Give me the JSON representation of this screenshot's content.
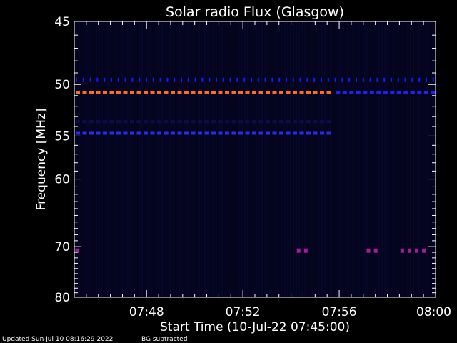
{
  "chart_data": {
    "type": "heatmap",
    "title": "Solar radio Flux (Glasgow)",
    "xlabel": "Start Time (10-Jul-22 07:45:00)",
    "ylabel": "Frequency [MHz]",
    "x_range": [
      "07:45:00",
      "08:00:00"
    ],
    "x_ticks": [
      "07:48",
      "07:52",
      "07:56",
      "08:00"
    ],
    "x_tick_minutes": [
      3,
      7,
      11,
      15
    ],
    "y_range": [
      45,
      80
    ],
    "y_ticks": [
      45,
      50,
      55,
      60,
      70,
      80
    ],
    "y_scale": "reciprocal",
    "background_color": "#04041c",
    "features": [
      {
        "kind": "interference_band",
        "freq_mhz": 49.6,
        "start_min": 0,
        "end_min": 15,
        "color": "#1a1aff",
        "style": "ticks"
      },
      {
        "kind": "interference_band",
        "freq_mhz": 50.7,
        "start_min": 0,
        "end_min": 10.8,
        "color": "#ff6a28",
        "style": "dashes"
      },
      {
        "kind": "interference_band",
        "freq_mhz": 50.7,
        "start_min": 10.8,
        "end_min": 15,
        "color": "#2222ee",
        "style": "dashes"
      },
      {
        "kind": "interference_band",
        "freq_mhz": 53.5,
        "start_min": 0,
        "end_min": 10.8,
        "color": "#0c0c55",
        "style": "dashes"
      },
      {
        "kind": "interference_band",
        "freq_mhz": 54.7,
        "start_min": 0,
        "end_min": 10.8,
        "color": "#2a2aee",
        "style": "dashes"
      },
      {
        "kind": "burst",
        "freq_mhz": 70.7,
        "minutes": [
          0.1,
          9.3,
          9.6,
          12.2,
          12.5,
          13.6,
          13.9,
          14.2,
          14.5
        ],
        "color": "#a81c9c"
      }
    ]
  },
  "footer": {
    "updated": "Updated Sun Jul 10 08:16:29 2022",
    "note": "BG subtracted"
  }
}
